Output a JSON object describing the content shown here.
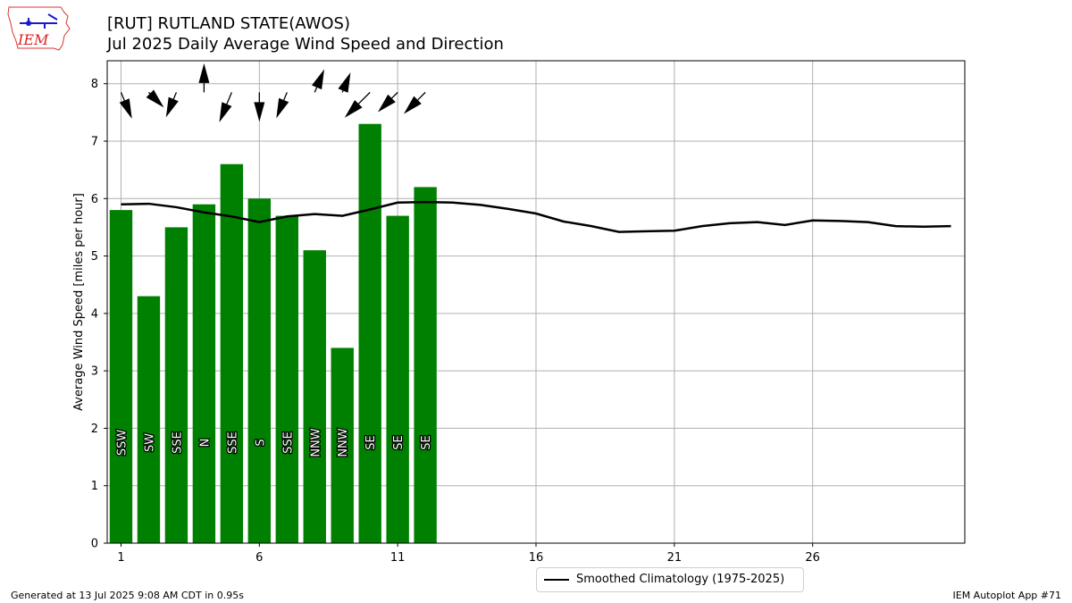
{
  "logo": {
    "text": "IEM",
    "icon": "iem-iowa-map-logo"
  },
  "title": "[RUT] RUTLAND STATE(AWOS)",
  "subtitle": "Jul 2025 Daily Average Wind Speed and Direction",
  "footer": {
    "left": "Generated at 13 Jul 2025 9:08 AM CDT in 0.95s",
    "right": "IEM Autoplot App #71"
  },
  "legend": {
    "label": "Smoothed Climatology (1975-2025)",
    "position": "lower-center"
  },
  "chart_data": {
    "type": "bar",
    "ylabel": "Average Wind Speed [miles per hour]",
    "xlim": [
      0.5,
      31.5
    ],
    "ylim": [
      0,
      8.4
    ],
    "xticks": [
      1,
      6,
      11,
      16,
      21,
      26
    ],
    "yticks": [
      0,
      1,
      2,
      3,
      4,
      5,
      6,
      7,
      8
    ],
    "grid": true,
    "bar_color": "#008000",
    "days": [
      1,
      2,
      3,
      4,
      5,
      6,
      7,
      8,
      9,
      10,
      11,
      12
    ],
    "values": [
      5.8,
      4.3,
      5.5,
      5.9,
      6.6,
      6.0,
      5.7,
      5.1,
      3.4,
      7.3,
      5.7,
      6.2
    ],
    "directions": [
      "SSW",
      "SW",
      "SSE",
      "N",
      "SSE",
      "S",
      "SSE",
      "NNW",
      "NNW",
      "SE",
      "SE",
      "SE"
    ],
    "climatology": {
      "name": "Smoothed Climatology (1975-2025)",
      "days": [
        1,
        2,
        3,
        4,
        5,
        6,
        7,
        8,
        9,
        10,
        11,
        12,
        13,
        14,
        15,
        16,
        17,
        18,
        19,
        20,
        21,
        22,
        23,
        24,
        25,
        26,
        27,
        28,
        29,
        30,
        31
      ],
      "values": [
        5.9,
        5.91,
        5.85,
        5.76,
        5.69,
        5.59,
        5.69,
        5.73,
        5.7,
        5.81,
        5.93,
        5.94,
        5.93,
        5.89,
        5.82,
        5.74,
        5.6,
        5.52,
        5.42,
        5.43,
        5.44,
        5.52,
        5.57,
        5.59,
        5.54,
        5.62,
        5.61,
        5.59,
        5.52,
        5.51,
        5.52
      ]
    }
  }
}
